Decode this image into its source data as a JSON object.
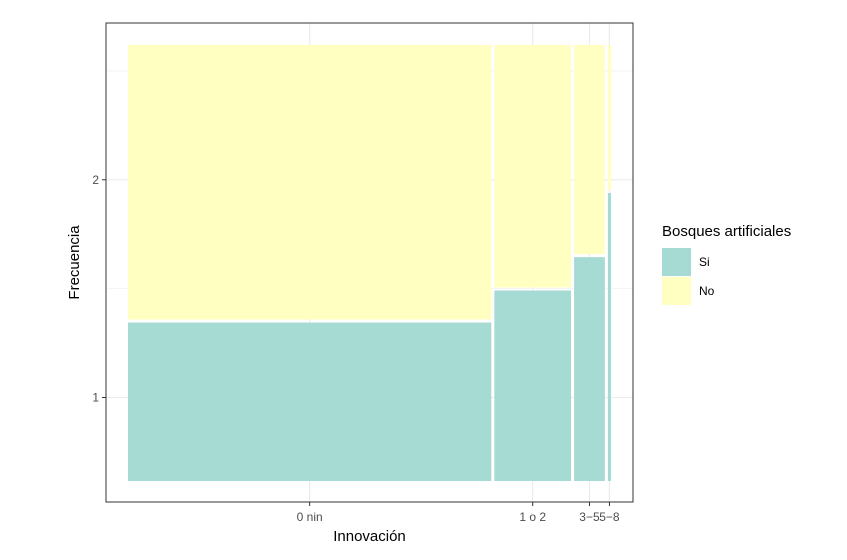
{
  "chart_data": {
    "type": "mosaic",
    "xlabel": "Innovación",
    "ylabel": "Frecuencia",
    "legend_title": "Bosques artificiales",
    "legend_position": "right",
    "grid": true,
    "ylim": [
      0.52,
      2.72
    ],
    "y_ticks": [
      1,
      2
    ],
    "categories": [
      "0 nin",
      "1 o 2",
      "3−5",
      "5−8"
    ],
    "category_widths": [
      0.696,
      0.147,
      0.059,
      0.006
    ],
    "series": [
      {
        "name": "Si",
        "color": "#A6DBD4",
        "proportions": [
          0.366,
          0.44,
          0.517,
          0.665
        ]
      },
      {
        "name": "No",
        "color": "#FFFFC2",
        "proportions": [
          0.634,
          0.56,
          0.483,
          0.335
        ]
      }
    ]
  }
}
